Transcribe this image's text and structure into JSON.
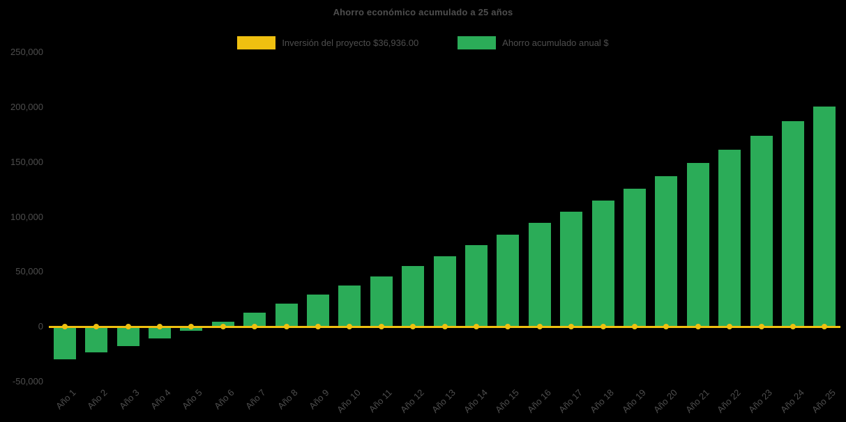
{
  "chart_data": {
    "type": "bar",
    "title": "Ahorro económico acumulado a 25 años",
    "categories": [
      "Año 1",
      "Año 2",
      "Año 3",
      "Año 4",
      "Año 5",
      "Año 6",
      "Año 7",
      "Año 8",
      "Año 9",
      "Año 10",
      "Año 11",
      "Año 12",
      "Año 13",
      "Año 14",
      "Año 15",
      "Año 16",
      "Año 17",
      "Año 18",
      "Año 19",
      "Año 20",
      "Año 21",
      "Año 22",
      "Año 23",
      "Año 24",
      "Año 25"
    ],
    "series": [
      {
        "name": "Inversión del proyecto $36,936.00",
        "type": "line",
        "color": "#EFC010",
        "values": [
          0,
          0,
          0,
          0,
          0,
          0,
          0,
          0,
          0,
          0,
          0,
          0,
          0,
          0,
          0,
          0,
          0,
          0,
          0,
          0,
          0,
          0,
          0,
          0,
          0
        ]
      },
      {
        "name": "Ahorro acumulado anual $",
        "type": "bar",
        "color": "#2BAC58",
        "values": [
          -30000,
          -23500,
          -17500,
          -11000,
          -3500,
          4500,
          12500,
          21000,
          29500,
          37500,
          46000,
          55000,
          64000,
          74000,
          84000,
          94500,
          104500,
          115000,
          126000,
          137000,
          149000,
          161500,
          174000,
          187000,
          200500
        ]
      }
    ],
    "investment_value_label": "$36,936.00",
    "ylim": [
      -50000,
      250000
    ],
    "yticks": [
      {
        "value": 250000,
        "label": "250,000"
      },
      {
        "value": 200000,
        "label": "200,000"
      },
      {
        "value": 150000,
        "label": "150,000"
      },
      {
        "value": 100000,
        "label": "100,000"
      },
      {
        "value": 50000,
        "label": "50,000"
      },
      {
        "value": 0,
        "label": "0"
      },
      {
        "value": -50000,
        "label": "-50,000"
      }
    ],
    "legend_position": "top",
    "grid": false,
    "background_color": "#000000",
    "text_color": "#4e4e4e"
  }
}
